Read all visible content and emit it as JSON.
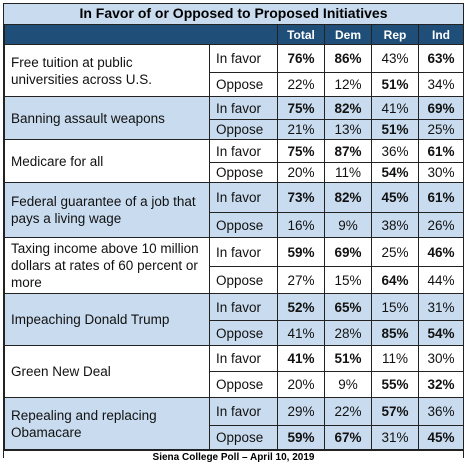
{
  "title": "In Favor of or Opposed to Proposed Initiatives",
  "columns": [
    "Total",
    "Dem",
    "Rep",
    "Ind"
  ],
  "rows": [
    {
      "question": "Free tuition at public universities across U.S.",
      "shade": false,
      "favor": {
        "label": "In favor",
        "vals": [
          "76%",
          "86%",
          "43%",
          "63%"
        ],
        "bold": [
          true,
          true,
          false,
          true
        ]
      },
      "oppose": {
        "label": "Oppose",
        "vals": [
          "22%",
          "12%",
          "51%",
          "34%"
        ],
        "bold": [
          false,
          false,
          true,
          false
        ]
      }
    },
    {
      "question": "Banning assault weapons",
      "shade": true,
      "favor": {
        "label": "In favor",
        "vals": [
          "75%",
          "82%",
          "41%",
          "69%"
        ],
        "bold": [
          true,
          true,
          false,
          true
        ]
      },
      "oppose": {
        "label": "Oppose",
        "vals": [
          "21%",
          "13%",
          "51%",
          "25%"
        ],
        "bold": [
          false,
          false,
          true,
          false
        ]
      }
    },
    {
      "question": "Medicare for all",
      "shade": false,
      "favor": {
        "label": "In favor",
        "vals": [
          "75%",
          "87%",
          "36%",
          "61%"
        ],
        "bold": [
          true,
          true,
          false,
          true
        ]
      },
      "oppose": {
        "label": "Oppose",
        "vals": [
          "20%",
          "11%",
          "54%",
          "30%"
        ],
        "bold": [
          false,
          false,
          true,
          false
        ]
      }
    },
    {
      "question": "Federal guarantee of a job that pays a living wage",
      "shade": true,
      "favor": {
        "label": "In favor",
        "vals": [
          "73%",
          "82%",
          "45%",
          "61%"
        ],
        "bold": [
          true,
          true,
          true,
          true
        ]
      },
      "oppose": {
        "label": "Oppose",
        "vals": [
          "16%",
          "9%",
          "38%",
          "26%"
        ],
        "bold": [
          false,
          false,
          false,
          false
        ]
      }
    },
    {
      "question": "Taxing income above 10 million dollars at rates of 60 percent or more",
      "shade": false,
      "favor": {
        "label": "In favor",
        "vals": [
          "59%",
          "69%",
          "25%",
          "46%"
        ],
        "bold": [
          true,
          true,
          false,
          true
        ]
      },
      "oppose": {
        "label": "Oppose",
        "vals": [
          "27%",
          "15%",
          "64%",
          "44%"
        ],
        "bold": [
          false,
          false,
          true,
          false
        ]
      }
    },
    {
      "question": "Impeaching Donald Trump",
      "shade": true,
      "favor": {
        "label": "In favor",
        "vals": [
          "52%",
          "65%",
          "15%",
          "31%"
        ],
        "bold": [
          true,
          true,
          false,
          false
        ]
      },
      "oppose": {
        "label": "Oppose",
        "vals": [
          "41%",
          "28%",
          "85%",
          "54%"
        ],
        "bold": [
          false,
          false,
          true,
          true
        ]
      }
    },
    {
      "question": "Green New Deal",
      "shade": false,
      "favor": {
        "label": "In favor",
        "vals": [
          "41%",
          "51%",
          "11%",
          "30%"
        ],
        "bold": [
          true,
          true,
          false,
          false
        ]
      },
      "oppose": {
        "label": "Oppose",
        "vals": [
          "20%",
          "9%",
          "55%",
          "32%"
        ],
        "bold": [
          false,
          false,
          true,
          true
        ]
      }
    },
    {
      "question": "Repealing and replacing Obamacare",
      "shade": true,
      "favor": {
        "label": "In favor",
        "vals": [
          "29%",
          "22%",
          "57%",
          "36%"
        ],
        "bold": [
          false,
          false,
          true,
          false
        ]
      },
      "oppose": {
        "label": "Oppose",
        "vals": [
          "59%",
          "67%",
          "31%",
          "45%"
        ],
        "bold": [
          true,
          true,
          false,
          true
        ]
      }
    }
  ],
  "footer": "Siena College Poll – April 10, 2019",
  "colors": {
    "header_bg": "#1f4e79",
    "shade": "#c9dcef"
  }
}
